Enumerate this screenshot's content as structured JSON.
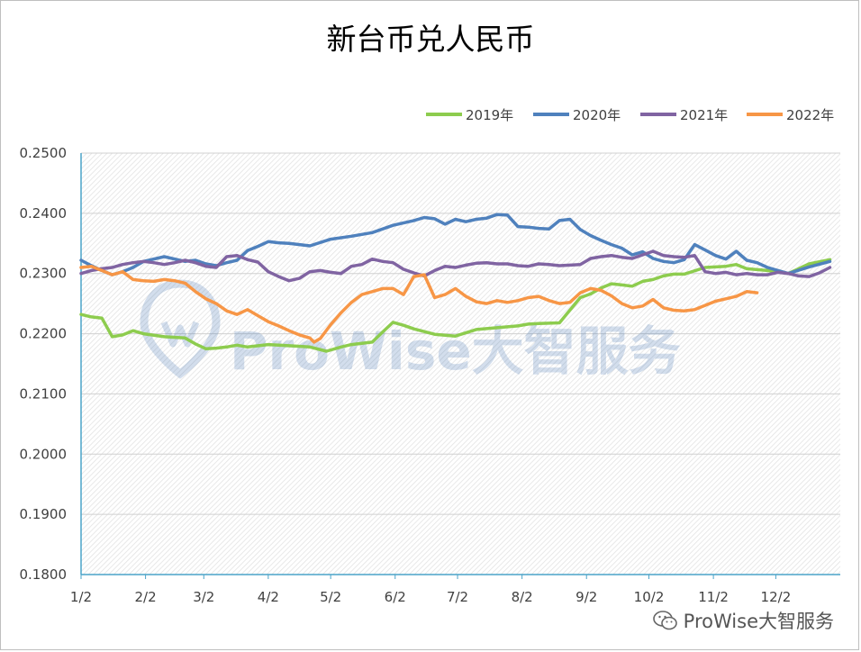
{
  "chart_data": {
    "type": "line",
    "title": "新台币兑人民币",
    "xlabel": "",
    "ylabel": "",
    "ylim": [
      0.18,
      0.25
    ],
    "y_ticks": [
      "0.2500",
      "0.2400",
      "0.2300",
      "0.2200",
      "0.2100",
      "0.2000",
      "0.1900",
      "0.1800"
    ],
    "x_ticks": [
      "1/2",
      "2/2",
      "3/2",
      "4/2",
      "5/2",
      "6/2",
      "7/2",
      "8/2",
      "9/2",
      "10/2",
      "11/2",
      "12/2"
    ],
    "grid": true,
    "legend_position": "top-right",
    "series": [
      {
        "name": "2019年",
        "color": "#8DCC4E",
        "x": [
          0,
          5,
          10,
          15,
          20,
          25,
          30,
          40,
          50,
          55,
          60,
          65,
          70,
          75,
          80,
          90,
          100,
          110,
          118,
          125,
          130,
          140,
          145,
          150,
          155,
          160,
          170,
          180,
          190,
          200,
          210,
          215,
          220,
          230,
          240,
          245,
          250,
          255,
          260,
          265,
          270,
          275,
          280,
          285,
          290,
          300,
          310,
          315,
          320,
          330,
          340,
          350,
          360
        ],
        "values": [
          0.2232,
          0.2228,
          0.2226,
          0.2195,
          0.2198,
          0.2205,
          0.22,
          0.2195,
          0.2193,
          0.2183,
          0.2175,
          0.2176,
          0.2178,
          0.2181,
          0.2178,
          0.2182,
          0.218,
          0.2178,
          0.2171,
          0.2178,
          0.2182,
          0.2186,
          0.2203,
          0.2219,
          0.2214,
          0.2208,
          0.2199,
          0.2196,
          0.2207,
          0.221,
          0.2213,
          0.2216,
          0.2217,
          0.2218,
          0.226,
          0.2266,
          0.2276,
          0.2283,
          0.2281,
          0.2279,
          0.2287,
          0.229,
          0.2296,
          0.2299,
          0.2299,
          0.231,
          0.2312,
          0.2315,
          0.2308,
          0.2305,
          0.23,
          0.2316,
          0.2323
        ]
      },
      {
        "name": "2020年",
        "color": "#4F81BD",
        "x": [
          0,
          5,
          10,
          15,
          20,
          25,
          30,
          40,
          50,
          55,
          60,
          65,
          70,
          75,
          80,
          85,
          90,
          95,
          100,
          110,
          120,
          130,
          140,
          150,
          160,
          165,
          170,
          175,
          180,
          185,
          190,
          195,
          200,
          205,
          210,
          215,
          220,
          225,
          230,
          235,
          240,
          245,
          250,
          255,
          260,
          265,
          270,
          275,
          280,
          285,
          290,
          295,
          300,
          305,
          310,
          315,
          320,
          325,
          330,
          340,
          350,
          360
        ],
        "values": [
          0.2322,
          0.2313,
          0.2305,
          0.2298,
          0.2303,
          0.231,
          0.232,
          0.2328,
          0.232,
          0.2322,
          0.2316,
          0.2313,
          0.2318,
          0.2322,
          0.2338,
          0.2345,
          0.2353,
          0.2351,
          0.235,
          0.2346,
          0.2357,
          0.2362,
          0.2368,
          0.238,
          0.2388,
          0.2393,
          0.2391,
          0.2382,
          0.239,
          0.2386,
          0.239,
          0.2392,
          0.2398,
          0.2397,
          0.2378,
          0.2377,
          0.2375,
          0.2374,
          0.2388,
          0.239,
          0.2373,
          0.2363,
          0.2355,
          0.2348,
          0.2342,
          0.2331,
          0.2336,
          0.2325,
          0.232,
          0.2318,
          0.2323,
          0.2348,
          0.2339,
          0.233,
          0.2324,
          0.2337,
          0.2322,
          0.2318,
          0.231,
          0.23,
          0.2311,
          0.232
        ]
      },
      {
        "name": "2021年",
        "color": "#8064A2",
        "x": [
          0,
          5,
          10,
          15,
          20,
          25,
          30,
          35,
          40,
          45,
          50,
          55,
          60,
          65,
          70,
          75,
          80,
          85,
          90,
          95,
          100,
          105,
          110,
          115,
          120,
          125,
          130,
          135,
          140,
          145,
          150,
          155,
          160,
          165,
          170,
          175,
          180,
          185,
          190,
          195,
          200,
          205,
          210,
          215,
          220,
          225,
          230,
          235,
          240,
          245,
          250,
          255,
          260,
          265,
          270,
          275,
          280,
          285,
          290,
          295,
          300,
          305,
          310,
          315,
          320,
          325,
          330,
          335,
          340,
          345,
          350,
          355,
          360
        ],
        "values": [
          0.23,
          0.2305,
          0.2308,
          0.231,
          0.2315,
          0.2318,
          0.232,
          0.2318,
          0.2315,
          0.2318,
          0.2322,
          0.2318,
          0.2312,
          0.231,
          0.2328,
          0.233,
          0.2323,
          0.2319,
          0.2303,
          0.2295,
          0.2288,
          0.2292,
          0.2303,
          0.2305,
          0.2302,
          0.23,
          0.2312,
          0.2315,
          0.2324,
          0.232,
          0.2318,
          0.2307,
          0.2301,
          0.2296,
          0.2305,
          0.2312,
          0.231,
          0.2314,
          0.2317,
          0.2318,
          0.2316,
          0.2316,
          0.2313,
          0.2312,
          0.2316,
          0.2315,
          0.2313,
          0.2314,
          0.2315,
          0.2325,
          0.2328,
          0.233,
          0.2327,
          0.2325,
          0.2331,
          0.2337,
          0.233,
          0.2328,
          0.2327,
          0.233,
          0.2303,
          0.23,
          0.2302,
          0.2298,
          0.23,
          0.2298,
          0.2298,
          0.2302,
          0.23,
          0.2296,
          0.2295,
          0.2301,
          0.231
        ]
      },
      {
        "name": "2022年",
        "color": "#F79646",
        "x": [
          0,
          5,
          10,
          15,
          20,
          25,
          30,
          35,
          40,
          45,
          50,
          55,
          60,
          65,
          70,
          75,
          80,
          85,
          90,
          95,
          100,
          105,
          110,
          112,
          115,
          120,
          125,
          130,
          135,
          140,
          145,
          150,
          155,
          160,
          165,
          170,
          175,
          180,
          185,
          190,
          195,
          200,
          205,
          210,
          215,
          220,
          225,
          230,
          235,
          240,
          245,
          250,
          255,
          260,
          265,
          270,
          275,
          280,
          285,
          290,
          295,
          300,
          305,
          310,
          315,
          320,
          325
        ],
        "values": [
          0.231,
          0.2312,
          0.2305,
          0.2298,
          0.2303,
          0.229,
          0.2288,
          0.2287,
          0.229,
          0.2288,
          0.2284,
          0.227,
          0.2258,
          0.225,
          0.2238,
          0.2232,
          0.224,
          0.223,
          0.222,
          0.2213,
          0.2205,
          0.2198,
          0.2193,
          0.2186,
          0.2192,
          0.2215,
          0.2235,
          0.2252,
          0.2265,
          0.227,
          0.2275,
          0.2275,
          0.2265,
          0.2295,
          0.2298,
          0.226,
          0.2265,
          0.2275,
          0.2262,
          0.2253,
          0.225,
          0.2255,
          0.2252,
          0.2255,
          0.226,
          0.2262,
          0.2255,
          0.225,
          0.2252,
          0.2268,
          0.2275,
          0.2272,
          0.2263,
          0.225,
          0.2243,
          0.2246,
          0.2257,
          0.2243,
          0.2239,
          0.2238,
          0.224,
          0.2247,
          0.2254,
          0.2258,
          0.2262,
          0.227,
          0.2268
        ]
      }
    ]
  },
  "watermark": {
    "brand": "ProWise大智服务",
    "footer": "ProWise大智服务"
  }
}
